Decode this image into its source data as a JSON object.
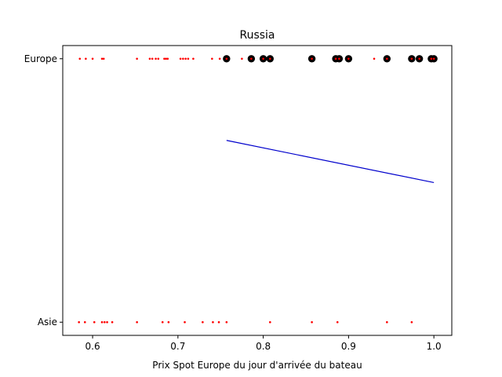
{
  "chart_data": {
    "type": "scatter",
    "title": "Russia",
    "xlabel": "Prix Spot Europe du jour d'arrivée du bateau",
    "ylabel": "",
    "xlim": [
      0.565,
      1.021
    ],
    "ylim": [
      -0.05,
      1.05
    ],
    "grid": false,
    "legend": "none",
    "x_ticks": [
      {
        "value": 0.6,
        "label": "0.6"
      },
      {
        "value": 0.7,
        "label": "0.7"
      },
      {
        "value": 0.8,
        "label": "0.8"
      },
      {
        "value": 0.9,
        "label": "0.9"
      },
      {
        "value": 1.0,
        "label": "1.0"
      }
    ],
    "y_ticks": [
      {
        "value": 0,
        "label": "Asie"
      },
      {
        "value": 1,
        "label": "Europe"
      }
    ],
    "series": [
      {
        "kind": "scatter",
        "color": "#ff0000",
        "marker": "small-dot",
        "points": [
          {
            "x": 0.585,
            "y": 1
          },
          {
            "x": 0.592,
            "y": 1
          },
          {
            "x": 0.6,
            "y": 1
          },
          {
            "x": 0.611,
            "y": 1
          },
          {
            "x": 0.613,
            "y": 1
          },
          {
            "x": 0.652,
            "y": 1
          },
          {
            "x": 0.667,
            "y": 1
          },
          {
            "x": 0.67,
            "y": 1
          },
          {
            "x": 0.674,
            "y": 1
          },
          {
            "x": 0.677,
            "y": 1
          },
          {
            "x": 0.684,
            "y": 1
          },
          {
            "x": 0.686,
            "y": 1
          },
          {
            "x": 0.688,
            "y": 1
          },
          {
            "x": 0.703,
            "y": 1
          },
          {
            "x": 0.706,
            "y": 1
          },
          {
            "x": 0.709,
            "y": 1
          },
          {
            "x": 0.712,
            "y": 1
          },
          {
            "x": 0.718,
            "y": 1
          },
          {
            "x": 0.74,
            "y": 1
          },
          {
            "x": 0.749,
            "y": 1
          },
          {
            "x": 0.757,
            "y": 1
          },
          {
            "x": 0.775,
            "y": 1
          },
          {
            "x": 0.786,
            "y": 1
          },
          {
            "x": 0.8,
            "y": 1
          },
          {
            "x": 0.808,
            "y": 1
          },
          {
            "x": 0.857,
            "y": 1
          },
          {
            "x": 0.885,
            "y": 1
          },
          {
            "x": 0.889,
            "y": 1
          },
          {
            "x": 0.9,
            "y": 1
          },
          {
            "x": 0.93,
            "y": 1
          },
          {
            "x": 0.945,
            "y": 1
          },
          {
            "x": 0.974,
            "y": 1
          },
          {
            "x": 0.983,
            "y": 1
          },
          {
            "x": 0.997,
            "y": 1
          },
          {
            "x": 1.0,
            "y": 1
          },
          {
            "x": 0.584,
            "y": 0
          },
          {
            "x": 0.591,
            "y": 0
          },
          {
            "x": 0.602,
            "y": 0
          },
          {
            "x": 0.611,
            "y": 0
          },
          {
            "x": 0.614,
            "y": 0
          },
          {
            "x": 0.617,
            "y": 0
          },
          {
            "x": 0.623,
            "y": 0
          },
          {
            "x": 0.652,
            "y": 0
          },
          {
            "x": 0.682,
            "y": 0
          },
          {
            "x": 0.689,
            "y": 0
          },
          {
            "x": 0.708,
            "y": 0
          },
          {
            "x": 0.729,
            "y": 0
          },
          {
            "x": 0.741,
            "y": 0
          },
          {
            "x": 0.748,
            "y": 0
          },
          {
            "x": 0.757,
            "y": 0
          },
          {
            "x": 0.808,
            "y": 0
          },
          {
            "x": 0.857,
            "y": 0
          },
          {
            "x": 0.887,
            "y": 0
          },
          {
            "x": 0.945,
            "y": 0
          },
          {
            "x": 0.974,
            "y": 0
          }
        ]
      },
      {
        "kind": "scatter",
        "color": "#000000",
        "marker": "large-circle",
        "points": [
          {
            "x": 0.757,
            "y": 1
          },
          {
            "x": 0.786,
            "y": 1
          },
          {
            "x": 0.8,
            "y": 1
          },
          {
            "x": 0.808,
            "y": 1
          },
          {
            "x": 0.857,
            "y": 1
          },
          {
            "x": 0.885,
            "y": 1
          },
          {
            "x": 0.889,
            "y": 1
          },
          {
            "x": 0.9,
            "y": 1
          },
          {
            "x": 0.945,
            "y": 1
          },
          {
            "x": 0.974,
            "y": 1
          },
          {
            "x": 0.983,
            "y": 1
          },
          {
            "x": 0.997,
            "y": 1
          },
          {
            "x": 1.0,
            "y": 1
          }
        ]
      },
      {
        "kind": "line",
        "color": "#0000cc",
        "points": [
          {
            "x": 0.757,
            "y": 0.69
          },
          {
            "x": 1.0,
            "y": 0.53
          }
        ]
      }
    ]
  }
}
